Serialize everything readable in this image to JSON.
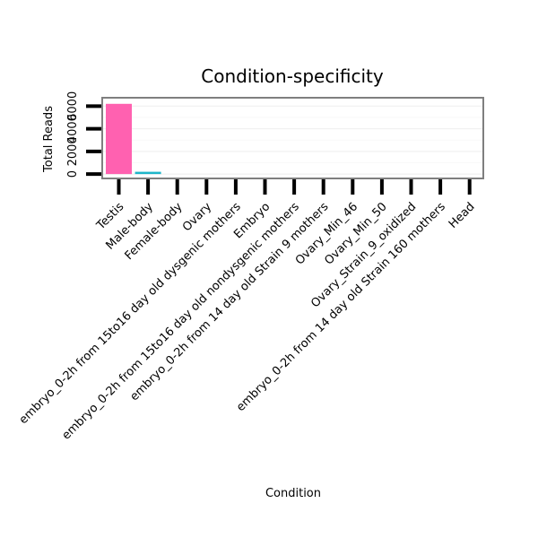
{
  "chart_data": {
    "type": "bar",
    "title": "Condition-specificity",
    "xlabel": "Condition",
    "ylabel": "Total Reads",
    "categories": [
      "Testis",
      "Male-body",
      "Female-body",
      "Ovary",
      "embryo_0-2h from 15to16 day old dysgenic mothers",
      "Embryo",
      "embryo_0-2h from 15to16 day old nondysgenic mothers",
      "embryo_0-2h from 14 day old Strain 9 mothers",
      "Ovary_Min_46",
      "Ovary_Min_50",
      "Ovary_Strain_9_oxidized",
      "embryo_0-2h from 14 day old Strain 160 mothers",
      "Head"
    ],
    "values": [
      6200,
      200,
      0,
      0,
      0,
      0,
      0,
      0,
      0,
      0,
      0,
      0,
      0
    ],
    "colors": [
      "#ff61b0",
      "#1fb5c9"
    ],
    "y_ticks": [
      {
        "value": 0,
        "label": "0"
      },
      {
        "value": 2000,
        "label": "2000"
      },
      {
        "value": 4000,
        "label": "4000"
      },
      {
        "value": 6000,
        "label": "6000"
      }
    ],
    "ylim": [
      -150,
      6500
    ],
    "grid": true,
    "legend": "none"
  }
}
